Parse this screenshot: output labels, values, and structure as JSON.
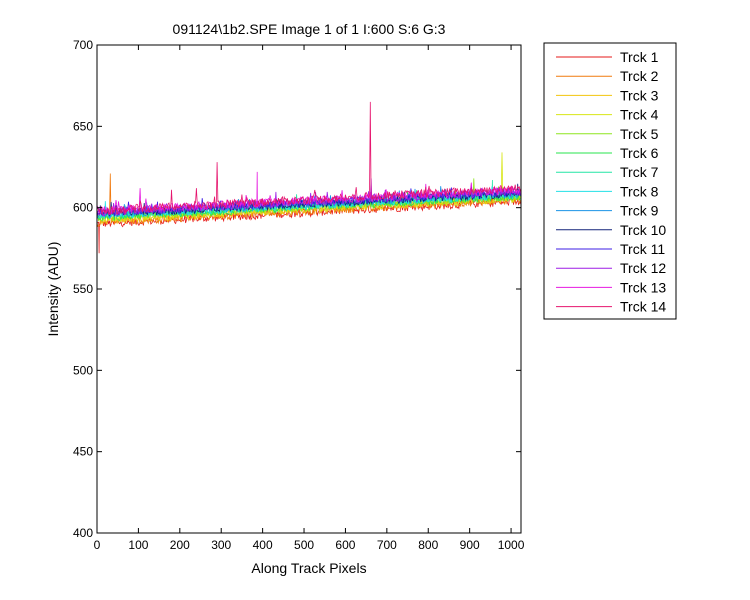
{
  "chart_data": {
    "type": "line",
    "title": "091124\\1b2.SPE  Image 1 of 1  I:600  S:6  G:3",
    "xlabel": "Along Track Pixels",
    "ylabel": "Intensity (ADU)",
    "xlim": [
      0,
      1024
    ],
    "ylim": [
      400,
      700
    ],
    "xticks": [
      0,
      100,
      200,
      300,
      400,
      500,
      600,
      700,
      800,
      900,
      1000
    ],
    "yticks": [
      400,
      450,
      500,
      550,
      600,
      650,
      700
    ],
    "grid": false,
    "legend_position": "outside-right",
    "series": [
      {
        "name": "Trck 1",
        "color": "#e61a1a",
        "start": 590,
        "end": 604,
        "spikes": [
          [
            5,
            572
          ]
        ]
      },
      {
        "name": "Trck 2",
        "color": "#f07a0f",
        "start": 591,
        "end": 605,
        "spikes": [
          [
            32,
            621
          ]
        ]
      },
      {
        "name": "Trck 3",
        "color": "#f2c40c",
        "start": 592,
        "end": 606,
        "spikes": []
      },
      {
        "name": "Trck 4",
        "color": "#d8e616",
        "start": 593,
        "end": 606,
        "spikes": [
          [
            978,
            634
          ]
        ]
      },
      {
        "name": "Trck 5",
        "color": "#8ee61e",
        "start": 594,
        "end": 607,
        "spikes": [
          [
            910,
            618
          ]
        ]
      },
      {
        "name": "Trck 6",
        "color": "#27e64c",
        "start": 594,
        "end": 607,
        "spikes": []
      },
      {
        "name": "Trck 7",
        "color": "#23e6a6",
        "start": 595,
        "end": 608,
        "spikes": [
          [
            955,
            617
          ]
        ]
      },
      {
        "name": "Trck 8",
        "color": "#22e0e6",
        "start": 595,
        "end": 608,
        "spikes": [
          [
            20,
            604
          ]
        ]
      },
      {
        "name": "Trck 9",
        "color": "#1a92e6",
        "start": 596,
        "end": 609,
        "spikes": []
      },
      {
        "name": "Trck 10",
        "color": "#13237a",
        "start": 596,
        "end": 609,
        "spikes": []
      },
      {
        "name": "Trck 11",
        "color": "#3c1ce6",
        "start": 597,
        "end": 610,
        "spikes": []
      },
      {
        "name": "Trck 12",
        "color": "#9e1ce6",
        "start": 597,
        "end": 610,
        "spikes": [
          [
            662,
            618
          ]
        ]
      },
      {
        "name": "Trck 13",
        "color": "#e61ae0",
        "start": 598,
        "end": 611,
        "spikes": [
          [
            104,
            612
          ],
          [
            387,
            622
          ]
        ]
      },
      {
        "name": "Trck 14",
        "color": "#e6156e",
        "start": 598,
        "end": 612,
        "spikes": [
          [
            290,
            628
          ],
          [
            660,
            665
          ],
          [
            180,
            611
          ],
          [
            240,
            612
          ]
        ]
      }
    ]
  }
}
